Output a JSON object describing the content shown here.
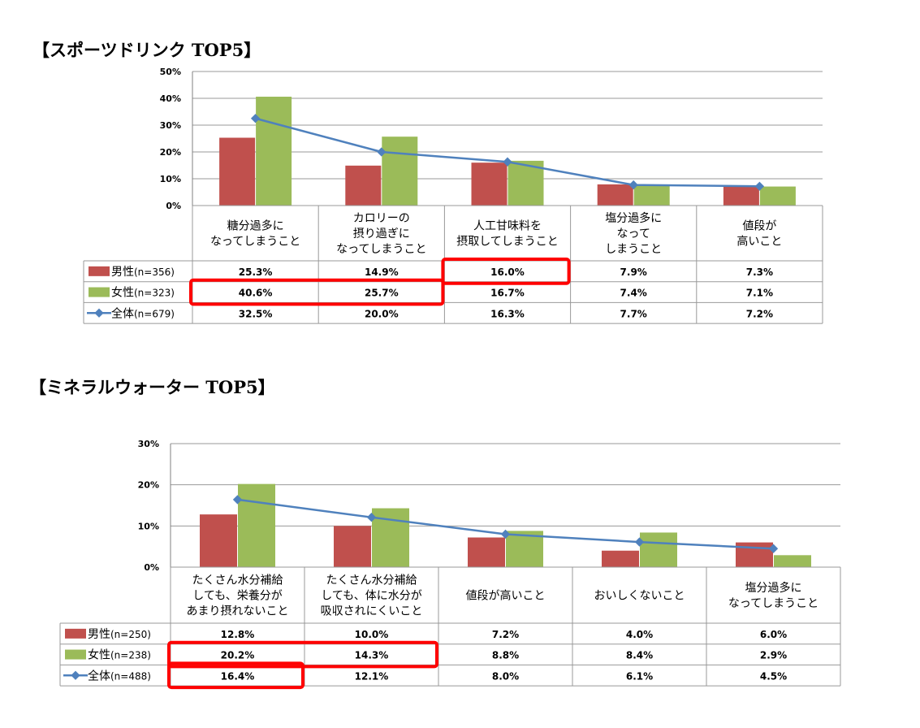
{
  "colors": {
    "male": "#C0504D",
    "female": "#9BBB59",
    "all": "#4F81BD",
    "highlight": "#FF0000",
    "grid": "#999999"
  },
  "chart_data": [
    {
      "type": "bar",
      "title": "【スポーツドリンク TOP5】",
      "categories": [
        [
          "糖分過多に",
          "なってしまうこと"
        ],
        [
          "カロリーの",
          "摂り過ぎに",
          "なってしまうこと"
        ],
        [
          "人工甘味料を",
          "摂取してしまうこと"
        ],
        [
          "塩分過多に",
          "なって",
          "しまうこと"
        ],
        [
          "値段が",
          "高いこと"
        ]
      ],
      "ylim": [
        0,
        50
      ],
      "yticks": [
        "0%",
        "10%",
        "20%",
        "30%",
        "40%",
        "50%"
      ],
      "series": [
        {
          "name": "男性",
          "n": "(n=356)",
          "kind": "bar",
          "color": "male",
          "values": [
            25.3,
            14.9,
            16.0,
            7.9,
            7.3
          ],
          "labels": [
            "25.3%",
            "14.9%",
            "16.0%",
            "7.9%",
            "7.3%"
          ]
        },
        {
          "name": "女性",
          "n": "(n=323)",
          "kind": "bar",
          "color": "female",
          "values": [
            40.6,
            25.7,
            16.7,
            7.4,
            7.1
          ],
          "labels": [
            "40.6%",
            "25.7%",
            "16.7%",
            "7.4%",
            "7.1%"
          ]
        },
        {
          "name": "全体",
          "n": "(n=679)",
          "kind": "line",
          "color": "all",
          "values": [
            32.5,
            20.0,
            16.3,
            7.7,
            7.2
          ],
          "labels": [
            "32.5%",
            "20.0%",
            "16.3%",
            "7.7%",
            "7.2%"
          ]
        }
      ],
      "highlights": [
        {
          "row": 0,
          "cols": [
            2,
            2
          ]
        },
        {
          "row": 1,
          "cols": [
            0,
            1
          ]
        }
      ]
    },
    {
      "type": "bar",
      "title": "【ミネラルウォーター TOP5】",
      "categories": [
        [
          "たくさん水分補給",
          "しても、栄養分が",
          "あまり摂れないこと"
        ],
        [
          "たくさん水分補給",
          "しても、体に水分が",
          "吸収されにくいこと"
        ],
        [
          "値段が高いこと"
        ],
        [
          "おいしくないこと"
        ],
        [
          "塩分過多に",
          "なってしまうこと"
        ]
      ],
      "ylim": [
        0,
        30
      ],
      "yticks": [
        "0%",
        "10%",
        "20%",
        "30%"
      ],
      "series": [
        {
          "name": "男性",
          "n": "(n=250)",
          "kind": "bar",
          "color": "male",
          "values": [
            12.8,
            10.0,
            7.2,
            4.0,
            6.0
          ],
          "labels": [
            "12.8%",
            "10.0%",
            "7.2%",
            "4.0%",
            "6.0%"
          ]
        },
        {
          "name": "女性",
          "n": "(n=238)",
          "kind": "bar",
          "color": "female",
          "values": [
            20.2,
            14.3,
            8.8,
            8.4,
            2.9
          ],
          "labels": [
            "20.2%",
            "14.3%",
            "8.8%",
            "8.4%",
            "2.9%"
          ]
        },
        {
          "name": "全体",
          "n": "(n=488)",
          "kind": "line",
          "color": "all",
          "values": [
            16.4,
            12.1,
            8.0,
            6.1,
            4.5
          ],
          "labels": [
            "16.4%",
            "12.1%",
            "8.0%",
            "6.1%",
            "4.5%"
          ]
        }
      ],
      "highlights": [
        {
          "row": 1,
          "cols": [
            0,
            1
          ]
        },
        {
          "row": 2,
          "cols": [
            0,
            0
          ]
        }
      ]
    }
  ]
}
